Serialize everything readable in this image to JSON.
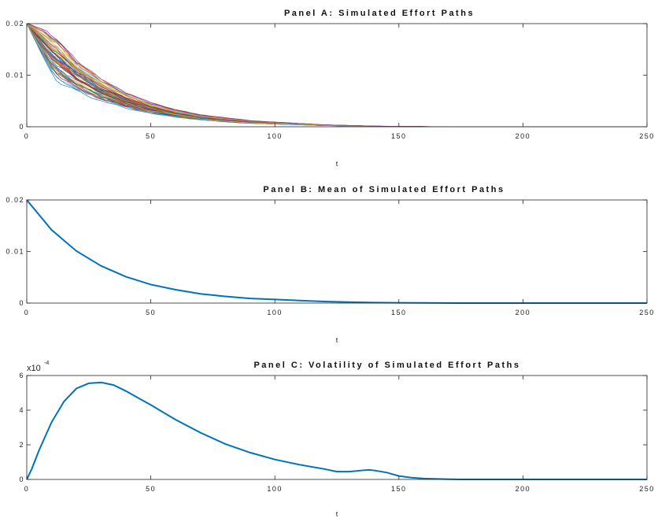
{
  "chart_data": [
    {
      "type": "line",
      "title": "Panel A: Simulated Effort Paths",
      "xlabel": "t",
      "ylabel": "",
      "xlim": [
        0,
        250
      ],
      "ylim": [
        0,
        0.02
      ],
      "xticks": [
        0,
        50,
        100,
        150,
        200,
        250
      ],
      "yticks": [
        0,
        0.01,
        0.02
      ],
      "xtick_labels": [
        "0",
        "50",
        "100",
        "150",
        "200",
        "250"
      ],
      "ytick_labels": [
        "0",
        "0.01",
        "0.02"
      ],
      "grid": false,
      "legend": "none",
      "series_description_values": {
        "count": 60,
        "mean_path": {
          "x": [
            0,
            10,
            20,
            30,
            40,
            50,
            60,
            70,
            80,
            90,
            100,
            110,
            120,
            130,
            140,
            150,
            160,
            175,
            200,
            250
          ],
          "y": [
            0.02,
            0.0142,
            0.0101,
            0.0072,
            0.0051,
            0.0036,
            0.0026,
            0.0018,
            0.0013,
            0.0009,
            0.0007,
            0.0005,
            0.0003,
            0.0002,
            0.0001,
            6e-05,
            3e-05,
            0.0,
            0.0,
            0.0
          ]
        }
      },
      "colors": [
        "#0072BD",
        "#D95319",
        "#EDB120",
        "#7E2F8E",
        "#77AC30",
        "#4DBEEE",
        "#A2142F"
      ]
    },
    {
      "type": "line",
      "title": "Panel B: Mean of Simulated Effort Paths",
      "xlabel": "t",
      "ylabel": "",
      "xlim": [
        0,
        250
      ],
      "ylim": [
        0,
        0.02
      ],
      "xticks": [
        0,
        50,
        100,
        150,
        200,
        250
      ],
      "yticks": [
        0,
        0.01,
        0.02
      ],
      "xtick_labels": [
        "0",
        "50",
        "100",
        "150",
        "200",
        "250"
      ],
      "ytick_labels": [
        "0",
        "0.01",
        "0.02"
      ],
      "grid": false,
      "series": [
        {
          "color": "#0072BD",
          "x": [
            0,
            10,
            20,
            30,
            40,
            50,
            60,
            70,
            80,
            90,
            100,
            110,
            120,
            130,
            140,
            150,
            160,
            175,
            200,
            250
          ],
          "y": [
            0.02,
            0.0142,
            0.0101,
            0.0072,
            0.0051,
            0.0036,
            0.0026,
            0.0018,
            0.0013,
            0.0009,
            0.0007,
            0.0005,
            0.0003,
            0.0002,
            0.0001,
            6e-05,
            3e-05,
            0.0,
            0.0,
            0.0
          ]
        }
      ]
    },
    {
      "type": "line",
      "title": "Panel C: Volatility of Simulated Effort Paths",
      "xlabel": "t",
      "ylabel": "",
      "xlim": [
        0,
        250
      ],
      "ylim": [
        0,
        6
      ],
      "scale_label": "x10",
      "scale_exponent": "-4",
      "xticks": [
        0,
        50,
        100,
        150,
        200,
        250
      ],
      "yticks": [
        0,
        2,
        4,
        6
      ],
      "xtick_labels": [
        "0",
        "50",
        "100",
        "150",
        "200",
        "250"
      ],
      "ytick_labels": [
        "0",
        "2",
        "4",
        "6"
      ],
      "grid": false,
      "series": [
        {
          "color": "#0072BD",
          "x": [
            0,
            2,
            5,
            10,
            15,
            20,
            25,
            30,
            35,
            40,
            45,
            50,
            60,
            70,
            80,
            90,
            100,
            110,
            120,
            125,
            130,
            135,
            138,
            140,
            145,
            150,
            155,
            160,
            170,
            175,
            200,
            250
          ],
          "y": [
            0,
            0.6,
            1.7,
            3.3,
            4.5,
            5.25,
            5.55,
            5.6,
            5.45,
            5.1,
            4.7,
            4.3,
            3.45,
            2.7,
            2.05,
            1.55,
            1.15,
            0.85,
            0.6,
            0.45,
            0.45,
            0.52,
            0.55,
            0.52,
            0.4,
            0.2,
            0.1,
            0.05,
            0.01,
            0.0,
            0.0,
            0.0
          ]
        }
      ]
    }
  ]
}
